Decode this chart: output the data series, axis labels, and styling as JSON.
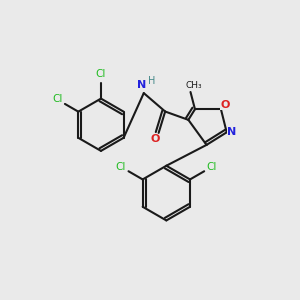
{
  "background_color": "#eaeaea",
  "bond_color": "#1a1a1a",
  "atom_colors": {
    "Cl": "#22bb22",
    "N": "#2222dd",
    "O": "#dd2222",
    "H": "#448888",
    "C": "#1a1a1a"
  },
  "figsize": [
    3.0,
    3.0
  ],
  "dpi": 100
}
